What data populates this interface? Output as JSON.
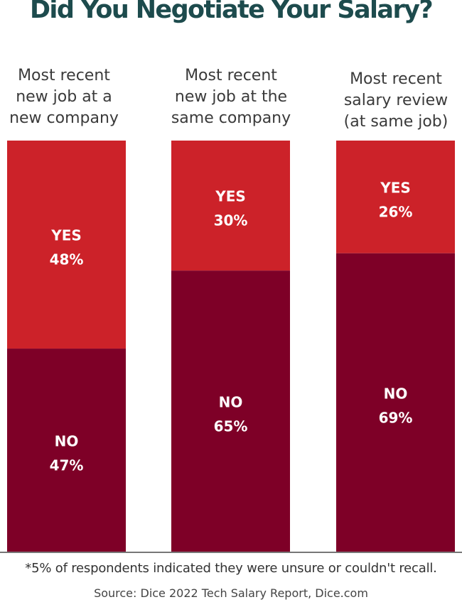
{
  "title": "Did You Negotiate Your Salary?",
  "colors": {
    "yes": "#cc2229",
    "no": "#7e0027",
    "title": "#1d4b4d",
    "axis": "#777777"
  },
  "chart_data": {
    "type": "bar",
    "stacked": true,
    "title": "Did You Negotiate Your Salary?",
    "categories": [
      [
        "Most recent",
        "new job at a",
        "new company"
      ],
      [
        "Most recent",
        "new job at the",
        "same company"
      ],
      [
        "Most recent",
        "salary review",
        "(at same job)"
      ]
    ],
    "series": [
      {
        "name": "YES",
        "values": [
          48,
          30,
          26
        ],
        "labels": [
          "48%",
          "30%",
          "26%"
        ]
      },
      {
        "name": "NO",
        "values": [
          47,
          65,
          69
        ],
        "labels": [
          "47%",
          "65%",
          "69%"
        ]
      }
    ],
    "unit": "%",
    "ylim": [
      0,
      95
    ]
  },
  "footnote": "*5% of respondents indicated they were unsure or couldn't recall.",
  "source": "Source: Dice 2022 Tech Salary Report, Dice.com"
}
